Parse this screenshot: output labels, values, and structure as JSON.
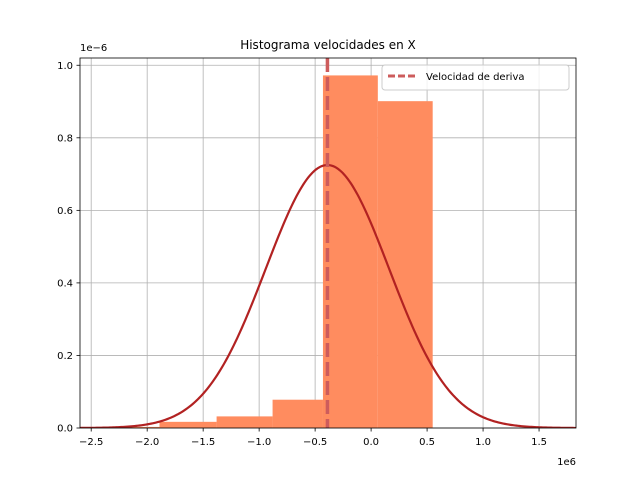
{
  "chart_data": {
    "type": "histogram",
    "title": "Histograma velocidades en X",
    "xlabel": "",
    "ylabel": "",
    "x_offset_label": "1e6",
    "y_offset_label": "1e−6",
    "xlim": [
      -2.6,
      1.83
    ],
    "ylim": [
      0,
      1.02
    ],
    "grid": true,
    "legend_position": "top-right",
    "x_ticks": [
      {
        "value": -2.5,
        "label": "−2.5"
      },
      {
        "value": -2.0,
        "label": "−2.0"
      },
      {
        "value": -1.5,
        "label": "−1.5"
      },
      {
        "value": -1.0,
        "label": "−1.0"
      },
      {
        "value": -0.5,
        "label": "−0.5"
      },
      {
        "value": 0.0,
        "label": "0.0"
      },
      {
        "value": 0.5,
        "label": "0.5"
      },
      {
        "value": 1.0,
        "label": "1.0"
      },
      {
        "value": 1.5,
        "label": "1.5"
      }
    ],
    "y_ticks": [
      {
        "value": 0.0,
        "label": "0.0"
      },
      {
        "value": 0.2,
        "label": "0.2"
      },
      {
        "value": 0.4,
        "label": "0.4"
      },
      {
        "value": 0.6,
        "label": "0.6"
      },
      {
        "value": 0.8,
        "label": "0.8"
      },
      {
        "value": 1.0,
        "label": "1.0"
      }
    ],
    "bins": [
      {
        "x0": -2.4,
        "x1": -1.89,
        "height": 0.003
      },
      {
        "x0": -1.89,
        "x1": -1.38,
        "height": 0.017
      },
      {
        "x0": -1.38,
        "x1": -0.88,
        "height": 0.032
      },
      {
        "x0": -0.88,
        "x1": -0.43,
        "height": 0.078
      },
      {
        "x0": -0.43,
        "x1": 0.06,
        "height": 0.972
      },
      {
        "x0": 0.06,
        "x1": 0.55,
        "height": 0.901
      }
    ],
    "fit_curve": {
      "type": "normal",
      "mean": -0.39,
      "std": 0.55,
      "peak": 0.725
    },
    "vline": {
      "x": -0.39,
      "label": "Velocidad de deriva"
    },
    "colors": {
      "bars": "#ff8c5f",
      "curve": "#b22222",
      "vline": "#cd5c5c",
      "grid": "#b0b0b0"
    }
  }
}
